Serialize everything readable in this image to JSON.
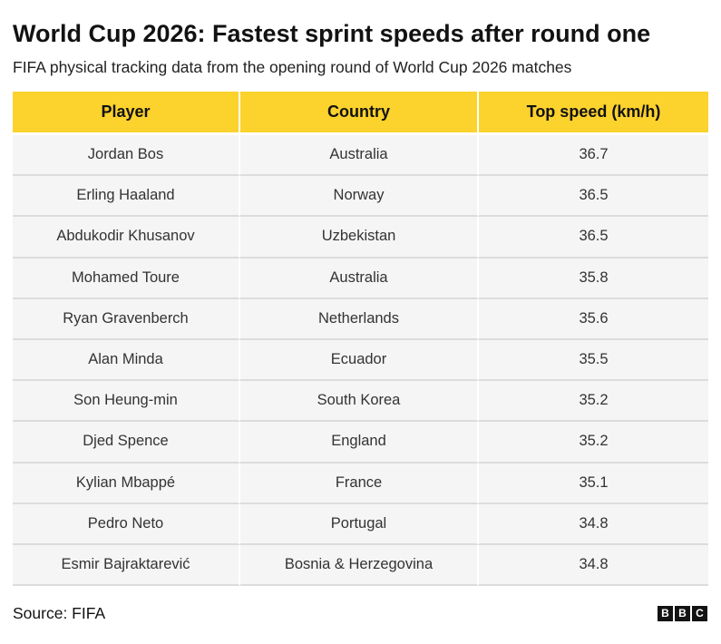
{
  "title": "World Cup 2026: Fastest sprint speeds after round one",
  "subtitle": "FIFA physical tracking data from the opening round of World Cup 2026 matches",
  "source": "Source: FIFA",
  "logo_letters": [
    "B",
    "B",
    "C"
  ],
  "colors": {
    "header_bg": "#fcd22d",
    "row_bg": "#f5f5f5"
  },
  "chart_data": {
    "type": "table",
    "columns": [
      "Player",
      "Country",
      "Top speed (km/h)"
    ],
    "rows": [
      [
        "Jordan Bos",
        "Australia",
        "36.7"
      ],
      [
        "Erling Haaland",
        "Norway",
        "36.5"
      ],
      [
        "Abdukodir Khusanov",
        "Uzbekistan",
        "36.5"
      ],
      [
        "Mohamed Toure",
        "Australia",
        "35.8"
      ],
      [
        "Ryan Gravenberch",
        "Netherlands",
        "35.6"
      ],
      [
        "Alan Minda",
        "Ecuador",
        "35.5"
      ],
      [
        "Son Heung-min",
        "South Korea",
        "35.2"
      ],
      [
        "Djed Spence",
        "England",
        "35.2"
      ],
      [
        "Kylian Mbappé",
        "France",
        "35.1"
      ],
      [
        "Pedro Neto",
        "Portugal",
        "34.8"
      ],
      [
        "Esmir Bajraktarević",
        "Bosnia & Herzegovina",
        "34.8"
      ]
    ]
  }
}
